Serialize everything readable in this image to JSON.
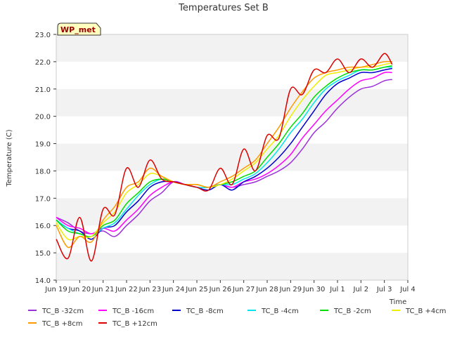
{
  "chart_data": {
    "type": "line",
    "title": "Temperatures Set B",
    "xlabel": "Time",
    "ylabel": "Temperature (C)",
    "ylim": [
      14.0,
      23.0
    ],
    "xlim": [
      "2024-06-19",
      "2024-07-04"
    ],
    "y_ticks": [
      "14.0",
      "15.0",
      "16.0",
      "17.0",
      "18.0",
      "19.0",
      "20.0",
      "21.0",
      "22.0",
      "23.0"
    ],
    "x_ticks": [
      "Jun 19",
      "Jun 20",
      "Jun 21",
      "Jun 22",
      "Jun 23",
      "Jun 24",
      "Jun 25",
      "Jun 26",
      "Jun 27",
      "Jun 28",
      "Jun 29",
      "Jun 30",
      "Jul 1",
      "Jul 2",
      "Jul 3",
      "Jul 4"
    ],
    "grid": "horizontal bands",
    "legend_placement": "bottom",
    "annotation": "WP_met",
    "x": [
      "2024-06-19",
      "2024-06-19 12:00",
      "2024-06-20",
      "2024-06-20 12:00",
      "2024-06-21",
      "2024-06-21 12:00",
      "2024-06-22",
      "2024-06-22 12:00",
      "2024-06-23",
      "2024-06-23 12:00",
      "2024-06-24",
      "2024-06-24 12:00",
      "2024-06-25",
      "2024-06-25 12:00",
      "2024-06-26",
      "2024-06-26 12:00",
      "2024-06-27",
      "2024-06-27 12:00",
      "2024-06-28",
      "2024-06-28 12:00",
      "2024-06-29",
      "2024-06-29 12:00",
      "2024-06-30",
      "2024-06-30 12:00",
      "2024-07-01",
      "2024-07-01 12:00",
      "2024-07-02",
      "2024-07-02 12:00",
      "2024-07-03",
      "2024-07-03 08:00"
    ],
    "series": [
      {
        "name": "TC_B -32cm",
        "color": "#9b30d9",
        "values": [
          16.3,
          16.1,
          15.8,
          15.7,
          15.8,
          15.6,
          16.0,
          16.4,
          16.9,
          17.2,
          17.6,
          17.5,
          17.4,
          17.4,
          17.5,
          17.4,
          17.5,
          17.6,
          17.8,
          18.0,
          18.3,
          18.8,
          19.4,
          19.8,
          20.3,
          20.7,
          21.0,
          21.1,
          21.3,
          21.35
        ]
      },
      {
        "name": "TC_B -16cm",
        "color": "#ff00ff",
        "values": [
          16.3,
          16.0,
          15.9,
          15.7,
          15.9,
          15.8,
          16.2,
          16.6,
          17.1,
          17.4,
          17.6,
          17.5,
          17.4,
          17.4,
          17.5,
          17.4,
          17.6,
          17.7,
          17.9,
          18.2,
          18.6,
          19.2,
          19.7,
          20.2,
          20.6,
          21.0,
          21.3,
          21.4,
          21.6,
          21.6
        ]
      },
      {
        "name": "TC_B -8cm",
        "color": "#0000cc",
        "values": [
          16.2,
          15.9,
          15.8,
          15.5,
          15.9,
          16.0,
          16.5,
          16.9,
          17.4,
          17.6,
          17.6,
          17.5,
          17.4,
          17.3,
          17.5,
          17.3,
          17.6,
          17.8,
          18.1,
          18.5,
          19.0,
          19.6,
          20.2,
          20.8,
          21.2,
          21.4,
          21.6,
          21.6,
          21.7,
          21.75
        ]
      },
      {
        "name": "TC_B -4cm",
        "color": "#00e5ee",
        "values": [
          16.2,
          15.9,
          15.7,
          15.6,
          15.9,
          16.1,
          16.6,
          17.1,
          17.5,
          17.7,
          17.6,
          17.5,
          17.4,
          17.4,
          17.5,
          17.5,
          17.7,
          17.9,
          18.3,
          18.8,
          19.4,
          19.9,
          20.5,
          21.0,
          21.3,
          21.5,
          21.7,
          21.7,
          21.8,
          21.8
        ]
      },
      {
        "name": "TC_B -2cm",
        "color": "#00dd00",
        "values": [
          16.2,
          15.8,
          15.7,
          15.6,
          16.0,
          16.2,
          16.8,
          17.2,
          17.6,
          17.7,
          17.6,
          17.5,
          17.5,
          17.4,
          17.5,
          17.6,
          17.8,
          18.0,
          18.5,
          19.0,
          19.6,
          20.1,
          20.7,
          21.1,
          21.4,
          21.6,
          21.7,
          21.7,
          21.8,
          21.85
        ]
      },
      {
        "name": "TC_B +4cm",
        "color": "#eeee00",
        "values": [
          16.1,
          15.5,
          15.6,
          15.6,
          16.1,
          16.5,
          17.2,
          17.5,
          17.9,
          17.8,
          17.6,
          17.5,
          17.5,
          17.4,
          17.5,
          17.7,
          18.0,
          18.3,
          18.8,
          19.3,
          20.0,
          20.6,
          21.1,
          21.5,
          21.6,
          21.7,
          21.8,
          21.8,
          21.9,
          21.95
        ]
      },
      {
        "name": "TC_B +8cm",
        "color": "#ff9900",
        "values": [
          16.0,
          15.2,
          15.6,
          15.4,
          16.2,
          16.7,
          17.4,
          17.6,
          18.1,
          17.8,
          17.6,
          17.5,
          17.5,
          17.4,
          17.6,
          17.8,
          18.1,
          18.4,
          19.0,
          19.6,
          20.3,
          20.9,
          21.4,
          21.6,
          21.7,
          21.8,
          21.8,
          21.9,
          22.0,
          22.0
        ]
      },
      {
        "name": "TC_B +12cm",
        "color": "#dd0000",
        "values": [
          15.5,
          14.8,
          16.3,
          14.7,
          16.6,
          16.4,
          18.1,
          17.4,
          18.4,
          17.7,
          17.6,
          17.5,
          17.4,
          17.3,
          18.1,
          17.5,
          18.8,
          18.0,
          19.3,
          19.2,
          21.0,
          20.8,
          21.7,
          21.6,
          22.1,
          21.6,
          22.1,
          21.8,
          22.3,
          21.9
        ]
      }
    ]
  }
}
